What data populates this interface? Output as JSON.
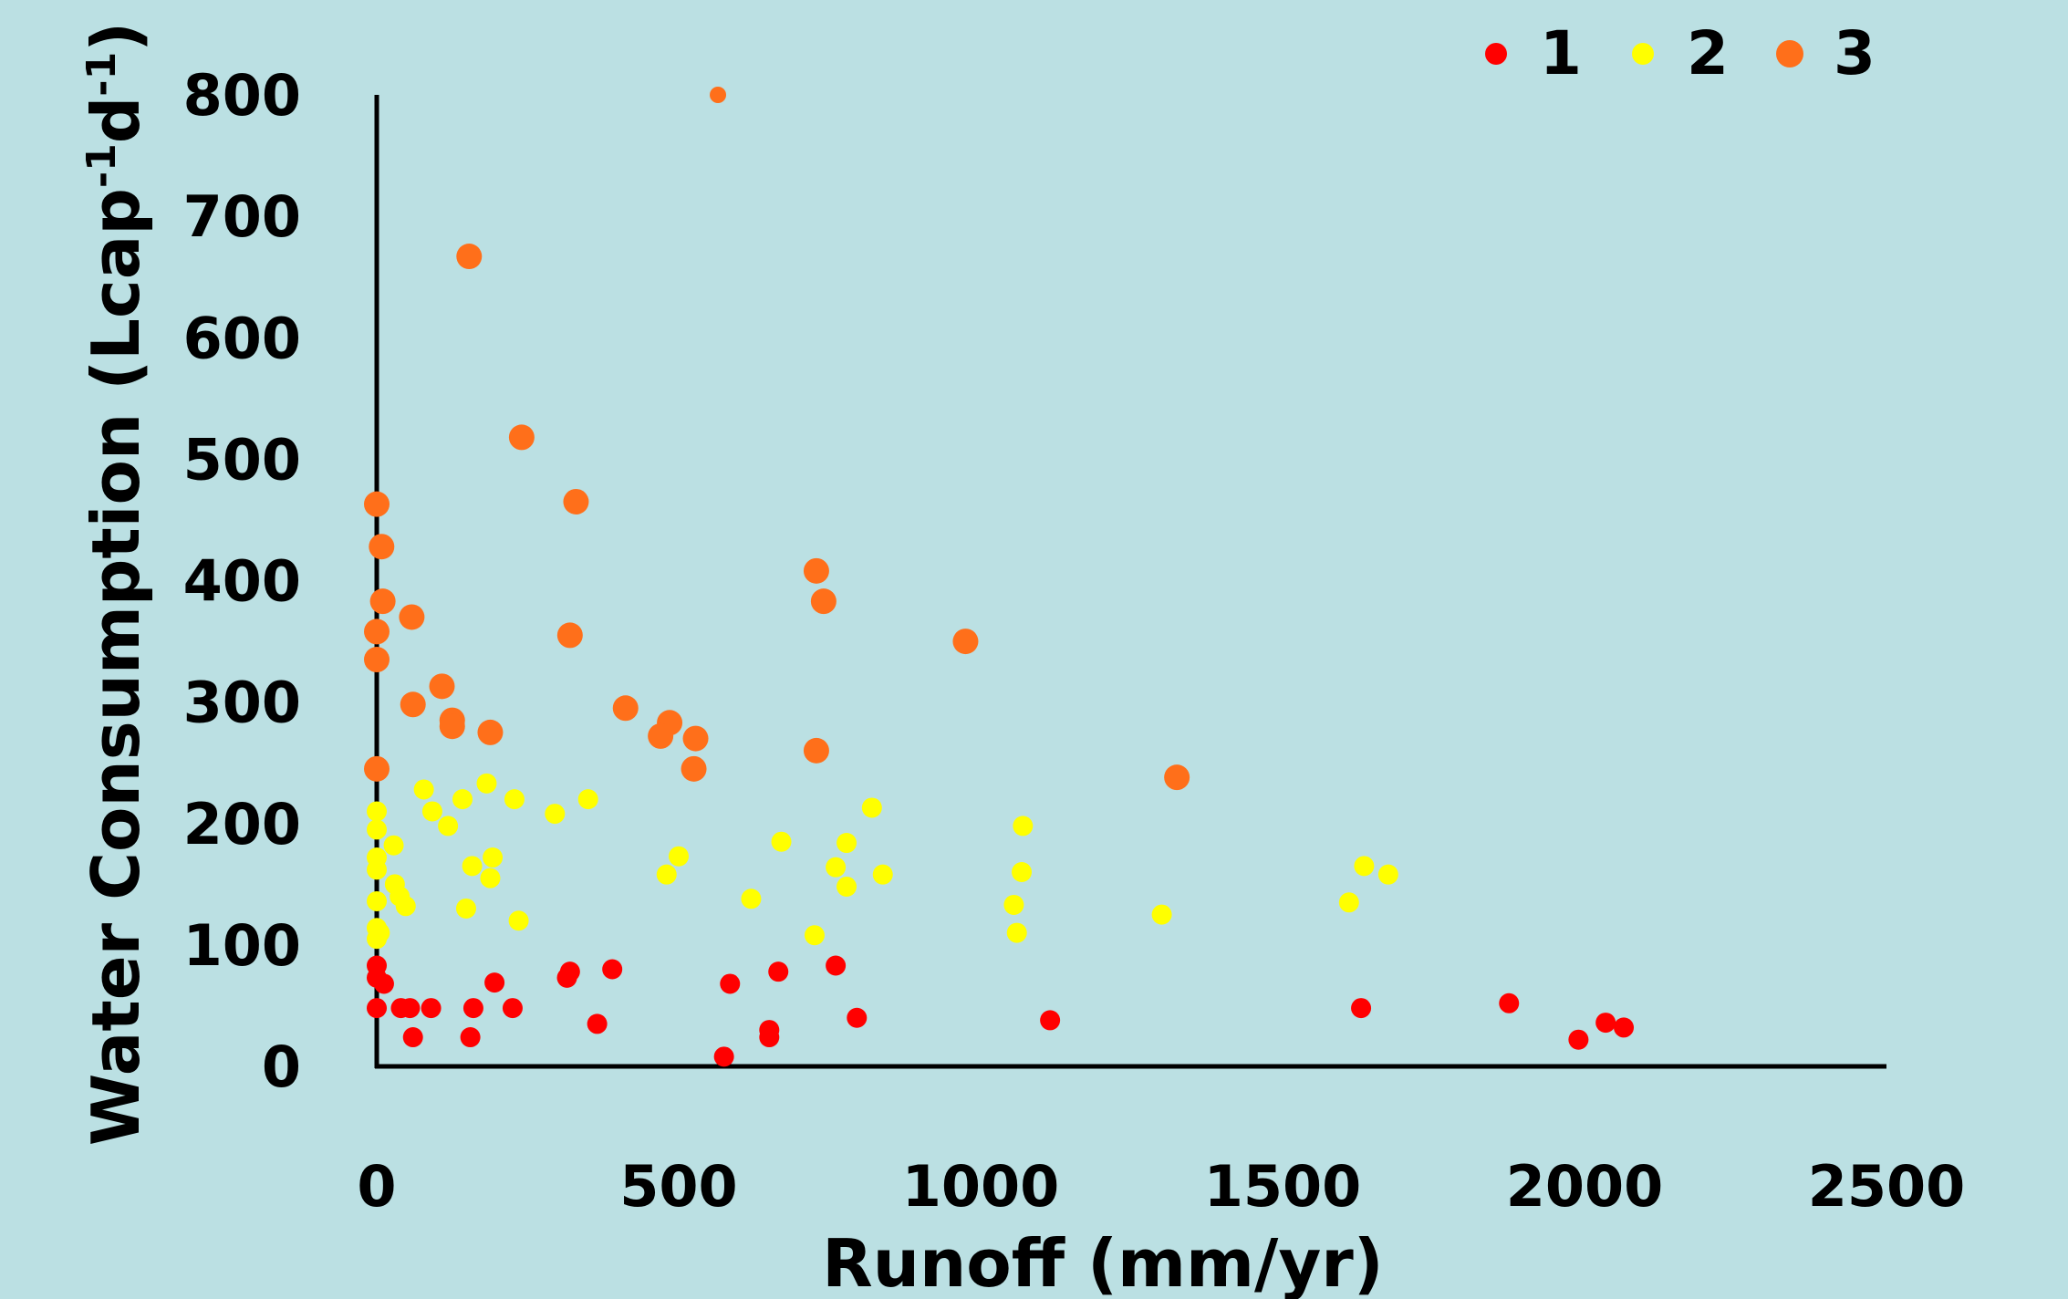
{
  "chart_data": {
    "type": "scatter",
    "title": "",
    "xlabel": "Runoff (mm/yr)",
    "ylabel": {
      "main": "Water Consumption (Lcap",
      "sup1": "-1",
      "mid": "d",
      "sup2": "-1",
      "end": ")"
    },
    "xlim": [
      0,
      2500
    ],
    "ylim": [
      0,
      800
    ],
    "xticks": [
      "0",
      "500",
      "1000",
      "1500",
      "2000",
      "2500"
    ],
    "yticks": [
      "0",
      "100",
      "200",
      "300",
      "400",
      "500",
      "600",
      "700",
      "800"
    ],
    "grid": false,
    "legend_position": "top-right",
    "series": [
      {
        "name": "1",
        "color": "#ff0000",
        "points": [
          [
            0,
            83
          ],
          [
            0,
            73
          ],
          [
            12,
            68
          ],
          [
            0,
            48
          ],
          [
            40,
            48
          ],
          [
            55,
            48
          ],
          [
            90,
            48
          ],
          [
            160,
            48
          ],
          [
            225,
            48
          ],
          [
            60,
            24
          ],
          [
            155,
            24
          ],
          [
            195,
            69
          ],
          [
            315,
            73
          ],
          [
            320,
            78
          ],
          [
            390,
            80
          ],
          [
            365,
            35
          ],
          [
            585,
            68
          ],
          [
            665,
            78
          ],
          [
            760,
            83
          ],
          [
            795,
            40
          ],
          [
            650,
            30
          ],
          [
            650,
            24
          ],
          [
            575,
            8
          ],
          [
            1115,
            38
          ],
          [
            1630,
            48
          ],
          [
            1875,
            52
          ],
          [
            1990,
            22
          ],
          [
            2035,
            36
          ],
          [
            2065,
            32
          ]
        ]
      },
      {
        "name": "2",
        "color": "#ffff00",
        "points": [
          [
            0,
            210
          ],
          [
            0,
            195
          ],
          [
            0,
            172
          ],
          [
            0,
            162
          ],
          [
            0,
            136
          ],
          [
            0,
            114
          ],
          [
            0,
            105
          ],
          [
            5,
            110
          ],
          [
            28,
            182
          ],
          [
            30,
            150
          ],
          [
            38,
            140
          ],
          [
            48,
            132
          ],
          [
            78,
            228
          ],
          [
            92,
            210
          ],
          [
            118,
            198
          ],
          [
            142,
            220
          ],
          [
            148,
            130
          ],
          [
            158,
            165
          ],
          [
            182,
            233
          ],
          [
            188,
            155
          ],
          [
            192,
            172
          ],
          [
            228,
            220
          ],
          [
            235,
            120
          ],
          [
            295,
            208
          ],
          [
            350,
            220
          ],
          [
            480,
            158
          ],
          [
            500,
            173
          ],
          [
            620,
            138
          ],
          [
            670,
            185
          ],
          [
            725,
            108
          ],
          [
            760,
            164
          ],
          [
            778,
            184
          ],
          [
            778,
            148
          ],
          [
            820,
            213
          ],
          [
            838,
            158
          ],
          [
            1055,
            133
          ],
          [
            1060,
            110
          ],
          [
            1068,
            160
          ],
          [
            1070,
            198
          ],
          [
            1300,
            125
          ],
          [
            1610,
            135
          ],
          [
            1635,
            165
          ],
          [
            1675,
            158
          ]
        ]
      },
      {
        "name": "3",
        "color": "#ff6f1a",
        "points": [
          [
            565,
            800
          ],
          [
            153,
            667
          ],
          [
            240,
            518
          ],
          [
            330,
            465
          ],
          [
            0,
            463
          ],
          [
            8,
            428
          ],
          [
            10,
            383
          ],
          [
            58,
            370
          ],
          [
            0,
            358
          ],
          [
            0,
            335
          ],
          [
            320,
            355
          ],
          [
            108,
            313
          ],
          [
            60,
            298
          ],
          [
            125,
            285
          ],
          [
            125,
            280
          ],
          [
            188,
            275
          ],
          [
            412,
            295
          ],
          [
            485,
            283
          ],
          [
            470,
            272
          ],
          [
            528,
            270
          ],
          [
            525,
            245
          ],
          [
            728,
            408
          ],
          [
            740,
            383
          ],
          [
            975,
            350
          ],
          [
            728,
            260
          ],
          [
            0,
            245
          ],
          [
            1325,
            238
          ]
        ]
      }
    ]
  }
}
